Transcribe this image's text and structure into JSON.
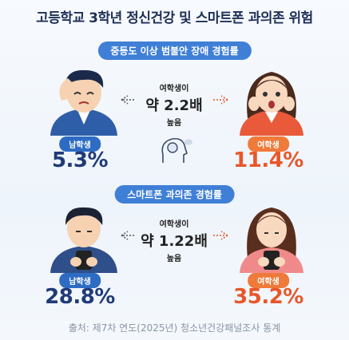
{
  "title": "고등학교 3학년 정신건강 및 스마트폰 과의존 위험",
  "sections": [
    {
      "header": "중등도 이상 범불안 장애 경험률",
      "comparison": [
        "여학생이",
        "약 2.2배",
        "높음"
      ],
      "male": {
        "label": "남학생",
        "value": "5.3%"
      },
      "female": {
        "label": "여학생",
        "value": "11.4%"
      }
    },
    {
      "header": "스마트폰 과의존 경험률",
      "comparison": [
        "여학생이",
        "약 1.22배",
        "높음"
      ],
      "male": {
        "label": "남학생",
        "value": "28.8%"
      },
      "female": {
        "label": "여학생",
        "value": "35.2%"
      }
    }
  ],
  "source": "출처: 제7차 연도(2025년) 청소년건강패널조사 통계"
}
